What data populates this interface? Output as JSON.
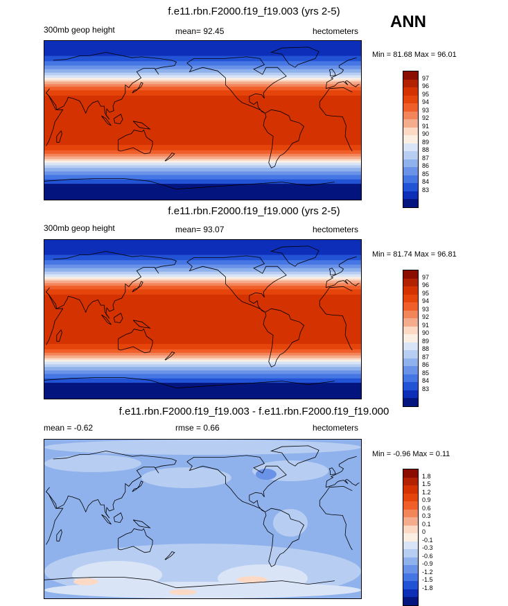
{
  "season": "ANN",
  "panels": [
    {
      "title": "f.e11.rbn.F2000.f19_f19.003 (yrs 2-5)",
      "left": "300mb geop height",
      "center": "mean=  92.45",
      "right": "hectometers",
      "minmax": "Min = 81.68 Max =  96.01",
      "kind": "abs",
      "colorbar": {
        "labels": [
          "97",
          "96",
          "95",
          "94",
          "93",
          "92",
          "91",
          "90",
          "89",
          "88",
          "87",
          "86",
          "85",
          "84",
          "83"
        ],
        "colors": [
          "#8b0d00",
          "#b22100",
          "#d43200",
          "#e5440b",
          "#f05e2a",
          "#f3855b",
          "#f5ac8c",
          "#fbd9c4",
          "#fbefe3",
          "#d9e5f6",
          "#b7cdf1",
          "#8fb1ec",
          "#6a93e8",
          "#4676e3",
          "#2353d5",
          "#0d2fb8",
          "#05157f"
        ]
      }
    },
    {
      "title": "f.e11.rbn.F2000.f19_f19.000 (yrs 2-5)",
      "left": "300mb geop height",
      "center": "mean=  93.07",
      "right": "hectometers",
      "minmax": "Min = 81.74 Max =  96.81",
      "kind": "abs",
      "colorbar": {
        "labels": [
          "97",
          "96",
          "95",
          "94",
          "93",
          "92",
          "91",
          "90",
          "89",
          "88",
          "87",
          "86",
          "85",
          "84",
          "83"
        ],
        "colors": [
          "#8b0d00",
          "#b22100",
          "#d43200",
          "#e5440b",
          "#f05e2a",
          "#f3855b",
          "#f5ac8c",
          "#fbd9c4",
          "#fbefe3",
          "#d9e5f6",
          "#b7cdf1",
          "#8fb1ec",
          "#6a93e8",
          "#4676e3",
          "#2353d5",
          "#0d2fb8",
          "#05157f"
        ]
      }
    },
    {
      "title": "f.e11.rbn.F2000.f19_f19.003 - f.e11.rbn.F2000.f19_f19.000",
      "left": "mean =  -0.62",
      "center": "rmse =   0.66",
      "right": "hectometers",
      "minmax": "Min =  -0.96 Max =   0.11",
      "kind": "diff",
      "colorbar": {
        "labels": [
          "1.8",
          "1.5",
          "1.2",
          "0.9",
          "0.6",
          "0.3",
          "0.1",
          "0",
          "-0.1",
          "-0.3",
          "-0.6",
          "-0.9",
          "-1.2",
          "-1.5",
          "-1.8"
        ],
        "colors": [
          "#8b0d00",
          "#b22100",
          "#d43200",
          "#e5440b",
          "#f05e2a",
          "#f3855b",
          "#f5ac8c",
          "#fbd9c4",
          "#fbefe3",
          "#d9e5f6",
          "#b7cdf1",
          "#8fb1ec",
          "#6a93e8",
          "#4676e3",
          "#2353d5",
          "#0d2fb8",
          "#05157f"
        ]
      }
    }
  ],
  "chart_data": [
    {
      "type": "heatmap",
      "title": "f.e11.rbn.F2000.f19_f19.003 (yrs 2-5)",
      "variable": "300mb geop height",
      "units": "hectometers",
      "mean": 92.45,
      "min": 81.68,
      "max": 96.01,
      "levels": [
        83,
        84,
        85,
        86,
        87,
        88,
        89,
        90,
        91,
        92,
        93,
        94,
        95,
        96,
        97
      ]
    },
    {
      "type": "heatmap",
      "title": "f.e11.rbn.F2000.f19_f19.000 (yrs 2-5)",
      "variable": "300mb geop height",
      "units": "hectometers",
      "mean": 93.07,
      "min": 81.74,
      "max": 96.81,
      "levels": [
        83,
        84,
        85,
        86,
        87,
        88,
        89,
        90,
        91,
        92,
        93,
        94,
        95,
        96,
        97
      ]
    },
    {
      "type": "heatmap",
      "title": "f.e11.rbn.F2000.f19_f19.003 - f.e11.rbn.F2000.f19_f19.000",
      "units": "hectometers",
      "mean": -0.62,
      "rmse": 0.66,
      "min": -0.96,
      "max": 0.11,
      "levels": [
        -1.8,
        -1.5,
        -1.2,
        -0.9,
        -0.6,
        -0.3,
        -0.1,
        0,
        0.1,
        0.3,
        0.6,
        0.9,
        1.2,
        1.5,
        1.8
      ]
    }
  ]
}
